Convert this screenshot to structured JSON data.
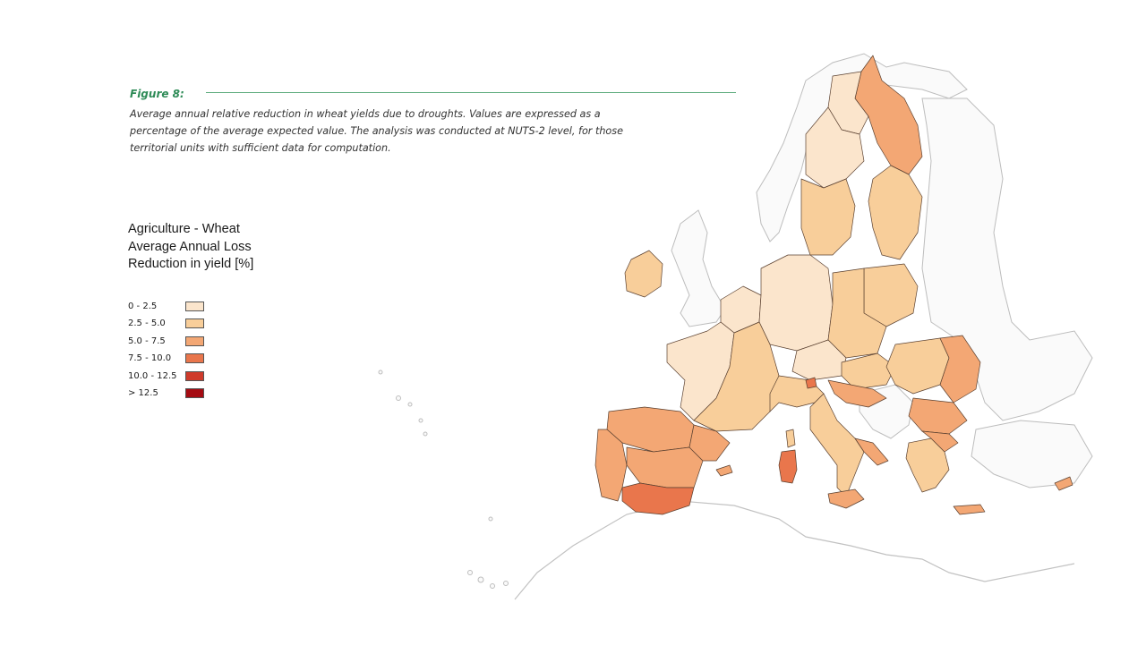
{
  "figure": {
    "label": "Figure 8:",
    "caption_lines": [
      "Average annual relative reduction in wheat yields due to droughts. Values are expressed as a",
      "percentage of the average expected value. The analysis was conducted at NUTS-2 level, for those",
      "territorial units with sufficient data for computation."
    ]
  },
  "legend": {
    "title_lines": [
      "Agriculture - Wheat",
      "Average Annual Loss",
      "Reduction in yield [%]"
    ],
    "items": [
      {
        "range": "0 - 2.5",
        "color": "#fbe5cc"
      },
      {
        "range": "2.5 - 5.0",
        "color": "#f8ce9a"
      },
      {
        "range": "5.0 - 7.5",
        "color": "#f3a774"
      },
      {
        "range": "7.5 - 10.0",
        "color": "#e9764c"
      },
      {
        "range": "10.0 - 12.5",
        "color": "#cf3b2b"
      },
      {
        "range": "> 12.5",
        "color": "#a50b12"
      }
    ]
  },
  "map_regions": [
    {
      "name": "finland-north",
      "class": 2
    },
    {
      "name": "lapland-west",
      "class": 0
    },
    {
      "name": "sweden-north",
      "class": 0
    },
    {
      "name": "sweden-middle",
      "class": 1
    },
    {
      "name": "finland-south",
      "class": 1
    },
    {
      "name": "baltics",
      "class": 1
    },
    {
      "name": "ireland",
      "class": 1
    },
    {
      "name": "benelux",
      "class": 0
    },
    {
      "name": "germany",
      "class": 0
    },
    {
      "name": "poland",
      "class": 1
    },
    {
      "name": "czech-austria",
      "class": 0
    },
    {
      "name": "france-west",
      "class": 0
    },
    {
      "name": "france-east",
      "class": 1
    },
    {
      "name": "spain-north",
      "class": 2
    },
    {
      "name": "spain-central",
      "class": 2
    },
    {
      "name": "andalusia",
      "class": 3
    },
    {
      "name": "portugal",
      "class": 2
    },
    {
      "name": "catalonia",
      "class": 2
    },
    {
      "name": "italy-north",
      "class": 1
    },
    {
      "name": "italy-south",
      "class": 1
    },
    {
      "name": "apulia",
      "class": 2
    },
    {
      "name": "sicily",
      "class": 2
    },
    {
      "name": "sardinia",
      "class": 3
    },
    {
      "name": "corsica",
      "class": 1
    },
    {
      "name": "hungary",
      "class": 1
    },
    {
      "name": "romania",
      "class": 1
    },
    {
      "name": "romania-east",
      "class": 2
    },
    {
      "name": "bulgaria",
      "class": 2
    },
    {
      "name": "croatia-coast",
      "class": 2
    },
    {
      "name": "greece",
      "class": 1
    },
    {
      "name": "greece-north",
      "class": 2
    },
    {
      "name": "crete",
      "class": 2
    },
    {
      "name": "cyprus",
      "class": 2
    },
    {
      "name": "balearics",
      "class": 2
    },
    {
      "name": "slovenia",
      "class": 3
    }
  ]
}
